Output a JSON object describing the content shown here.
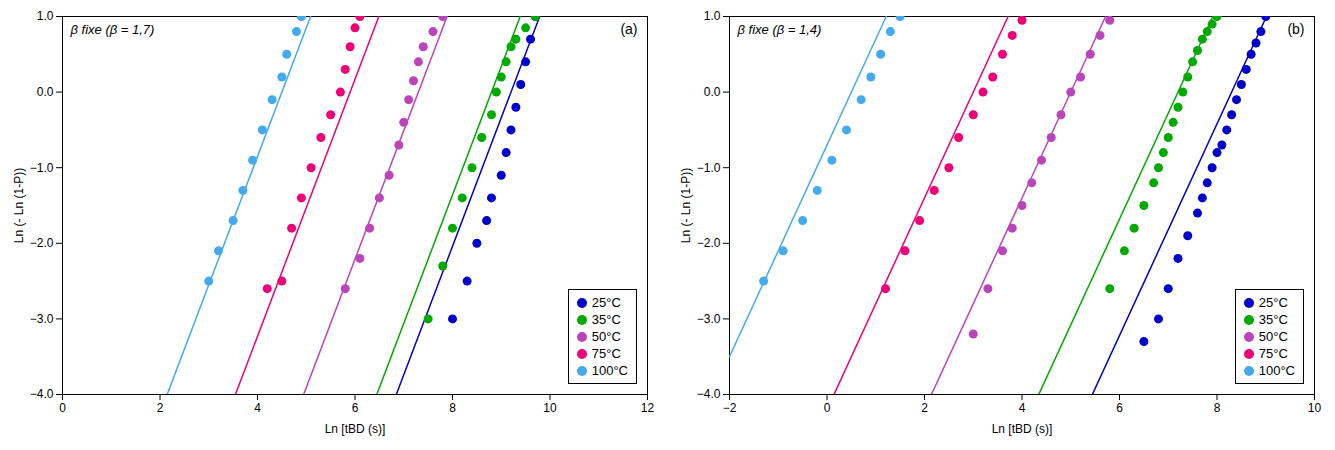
{
  "chart_data": [
    {
      "type": "scatter",
      "annotations": [
        "β fixe (β = 1,7)",
        "(a)"
      ],
      "xlabel": "Ln [tBD (s)]",
      "ylabel": "Ln (- Ln (1-P))",
      "xlim": [
        0,
        12
      ],
      "ylim": [
        -4,
        1
      ],
      "xticks": [
        0,
        2,
        4,
        6,
        8,
        10,
        12
      ],
      "yticks": [
        -4,
        -3,
        -2,
        -1,
        0,
        1
      ],
      "grid": false,
      "legend": "lower right",
      "series": [
        {
          "name": "25°C",
          "color": "#0000CC",
          "x": [
            8.0,
            8.3,
            8.5,
            8.7,
            8.8,
            9.0,
            9.1,
            9.2,
            9.3,
            9.4,
            9.5,
            9.6,
            9.7
          ],
          "values": [
            -3.0,
            -2.5,
            -2.0,
            -1.7,
            -1.4,
            -1.1,
            -0.8,
            -0.5,
            -0.2,
            0.1,
            0.4,
            0.7,
            1.0
          ],
          "fit": {
            "x": [
              6.847058823529412,
              9.788235294117648
            ],
            "values": [
              -4,
              1
            ]
          }
        },
        {
          "name": "35°C",
          "color": "#00AA00",
          "x": [
            7.5,
            7.8,
            8.0,
            8.2,
            8.4,
            8.6,
            8.8,
            8.9,
            9.0,
            9.1,
            9.2,
            9.3,
            9.5,
            9.7
          ],
          "values": [
            -3.0,
            -2.3,
            -1.8,
            -1.4,
            -1.0,
            -0.6,
            -0.3,
            0.0,
            0.2,
            0.4,
            0.6,
            0.7,
            0.85,
            1.0
          ],
          "fit": {
            "x": [
              6.447058823529412,
              9.388235294117647
            ],
            "values": [
              -4,
              1
            ]
          }
        },
        {
          "name": "50°C",
          "color": "#BB44BB",
          "x": [
            5.8,
            6.1,
            6.3,
            6.5,
            6.7,
            6.9,
            7.0,
            7.1,
            7.2,
            7.3,
            7.4,
            7.6,
            7.8
          ],
          "values": [
            -2.6,
            -2.2,
            -1.8,
            -1.4,
            -1.1,
            -0.7,
            -0.4,
            -0.1,
            0.15,
            0.4,
            0.6,
            0.8,
            1.0
          ],
          "fit": {
            "x": [
              4.947058823529412,
              7.888235294117647
            ],
            "values": [
              -4,
              1
            ]
          }
        },
        {
          "name": "75°C",
          "color": "#EE0077",
          "x": [
            4.2,
            4.5,
            4.7,
            4.9,
            5.1,
            5.3,
            5.5,
            5.7,
            5.8,
            5.9,
            6.0,
            6.1
          ],
          "values": [
            -2.6,
            -2.5,
            -1.8,
            -1.4,
            -1.0,
            -0.6,
            -0.3,
            0.0,
            0.3,
            0.6,
            0.85,
            1.0
          ],
          "fit": {
            "x": [
              3.547058823529412,
              6.488235294117647
            ],
            "values": [
              -4,
              1
            ]
          }
        },
        {
          "name": "100°C",
          "color": "#44AAEE",
          "x": [
            3.0,
            3.2,
            3.5,
            3.7,
            3.9,
            4.1,
            4.3,
            4.5,
            4.6,
            4.8,
            4.9
          ],
          "values": [
            -2.5,
            -2.1,
            -1.7,
            -1.3,
            -0.9,
            -0.5,
            -0.1,
            0.2,
            0.5,
            0.8,
            1.0
          ],
          "fit": {
            "x": [
              2.147058823529412,
              5.088235294117647
            ],
            "values": [
              -4,
              1
            ]
          }
        }
      ]
    },
    {
      "type": "scatter",
      "annotations": [
        "β fixe (β = 1,4)",
        "(b)"
      ],
      "xlabel": "Ln [tBD (s)]",
      "ylabel": "Ln (- Ln (1-P))",
      "xlim": [
        -2,
        10
      ],
      "ylim": [
        -4,
        1
      ],
      "xticks": [
        -2,
        0,
        2,
        4,
        6,
        8,
        10
      ],
      "yticks": [
        -4,
        -3,
        -2,
        -1,
        0,
        1
      ],
      "grid": false,
      "legend": "lower right",
      "series": [
        {
          "name": "25°C",
          "color": "#0000CC",
          "x": [
            6.5,
            6.8,
            7.0,
            7.2,
            7.4,
            7.6,
            7.7,
            7.8,
            7.9,
            8.0,
            8.1,
            8.2,
            8.3,
            8.4,
            8.5,
            8.6,
            8.7,
            8.8,
            8.9,
            9.0
          ],
          "values": [
            -3.3,
            -3.0,
            -2.6,
            -2.2,
            -1.9,
            -1.6,
            -1.4,
            -1.2,
            -1.0,
            -0.8,
            -0.7,
            -0.5,
            -0.3,
            -0.1,
            0.1,
            0.3,
            0.5,
            0.65,
            0.8,
            1.0
          ],
          "fit": {
            "x": [
              5.442857142857143,
              9.014285714285714
            ],
            "values": [
              -4,
              1
            ]
          }
        },
        {
          "name": "35°C",
          "color": "#00AA00",
          "x": [
            5.8,
            6.1,
            6.3,
            6.5,
            6.7,
            6.8,
            6.9,
            7.0,
            7.1,
            7.2,
            7.3,
            7.4,
            7.5,
            7.6,
            7.7,
            7.8,
            7.9,
            8.0
          ],
          "values": [
            -2.6,
            -2.1,
            -1.8,
            -1.5,
            -1.2,
            -1.0,
            -0.8,
            -0.6,
            -0.4,
            -0.2,
            0.0,
            0.2,
            0.4,
            0.55,
            0.7,
            0.8,
            0.9,
            1.0
          ],
          "fit": {
            "x": [
              4.342857142857143,
              7.914285714285714
            ],
            "values": [
              -4,
              1
            ]
          }
        },
        {
          "name": "50°C",
          "color": "#BB44BB",
          "x": [
            3.0,
            3.3,
            3.6,
            3.8,
            4.0,
            4.2,
            4.4,
            4.6,
            4.8,
            5.0,
            5.2,
            5.4,
            5.6,
            5.8
          ],
          "values": [
            -3.2,
            -2.6,
            -2.1,
            -1.8,
            -1.5,
            -1.2,
            -0.9,
            -0.6,
            -0.3,
            0.0,
            0.2,
            0.5,
            0.75,
            0.95
          ],
          "fit": {
            "x": [
              2.142857142857143,
              5.714285714285714
            ],
            "values": [
              -4,
              1
            ]
          }
        },
        {
          "name": "75°C",
          "color": "#EE0077",
          "x": [
            1.2,
            1.6,
            1.9,
            2.2,
            2.5,
            2.7,
            3.0,
            3.2,
            3.4,
            3.6,
            3.8,
            4.0
          ],
          "values": [
            -2.6,
            -2.1,
            -1.7,
            -1.3,
            -1.0,
            -0.6,
            -0.3,
            0.0,
            0.2,
            0.5,
            0.75,
            0.95
          ],
          "fit": {
            "x": [
              0.142857142857143,
              3.714285714285714
            ],
            "values": [
              -4,
              1
            ]
          }
        },
        {
          "name": "100°C",
          "color": "#44AAEE",
          "x": [
            -1.3,
            -0.9,
            -0.5,
            -0.2,
            0.1,
            0.4,
            0.7,
            0.9,
            1.1,
            1.3,
            1.5
          ],
          "values": [
            -2.5,
            -2.1,
            -1.7,
            -1.3,
            -0.9,
            -0.5,
            -0.1,
            0.2,
            0.5,
            0.8,
            1.0
          ],
          "fit": {
            "x": [
              -2,
              1.2142857142857142
            ],
            "values": [
              -3.5,
              1
            ]
          }
        }
      ]
    }
  ]
}
